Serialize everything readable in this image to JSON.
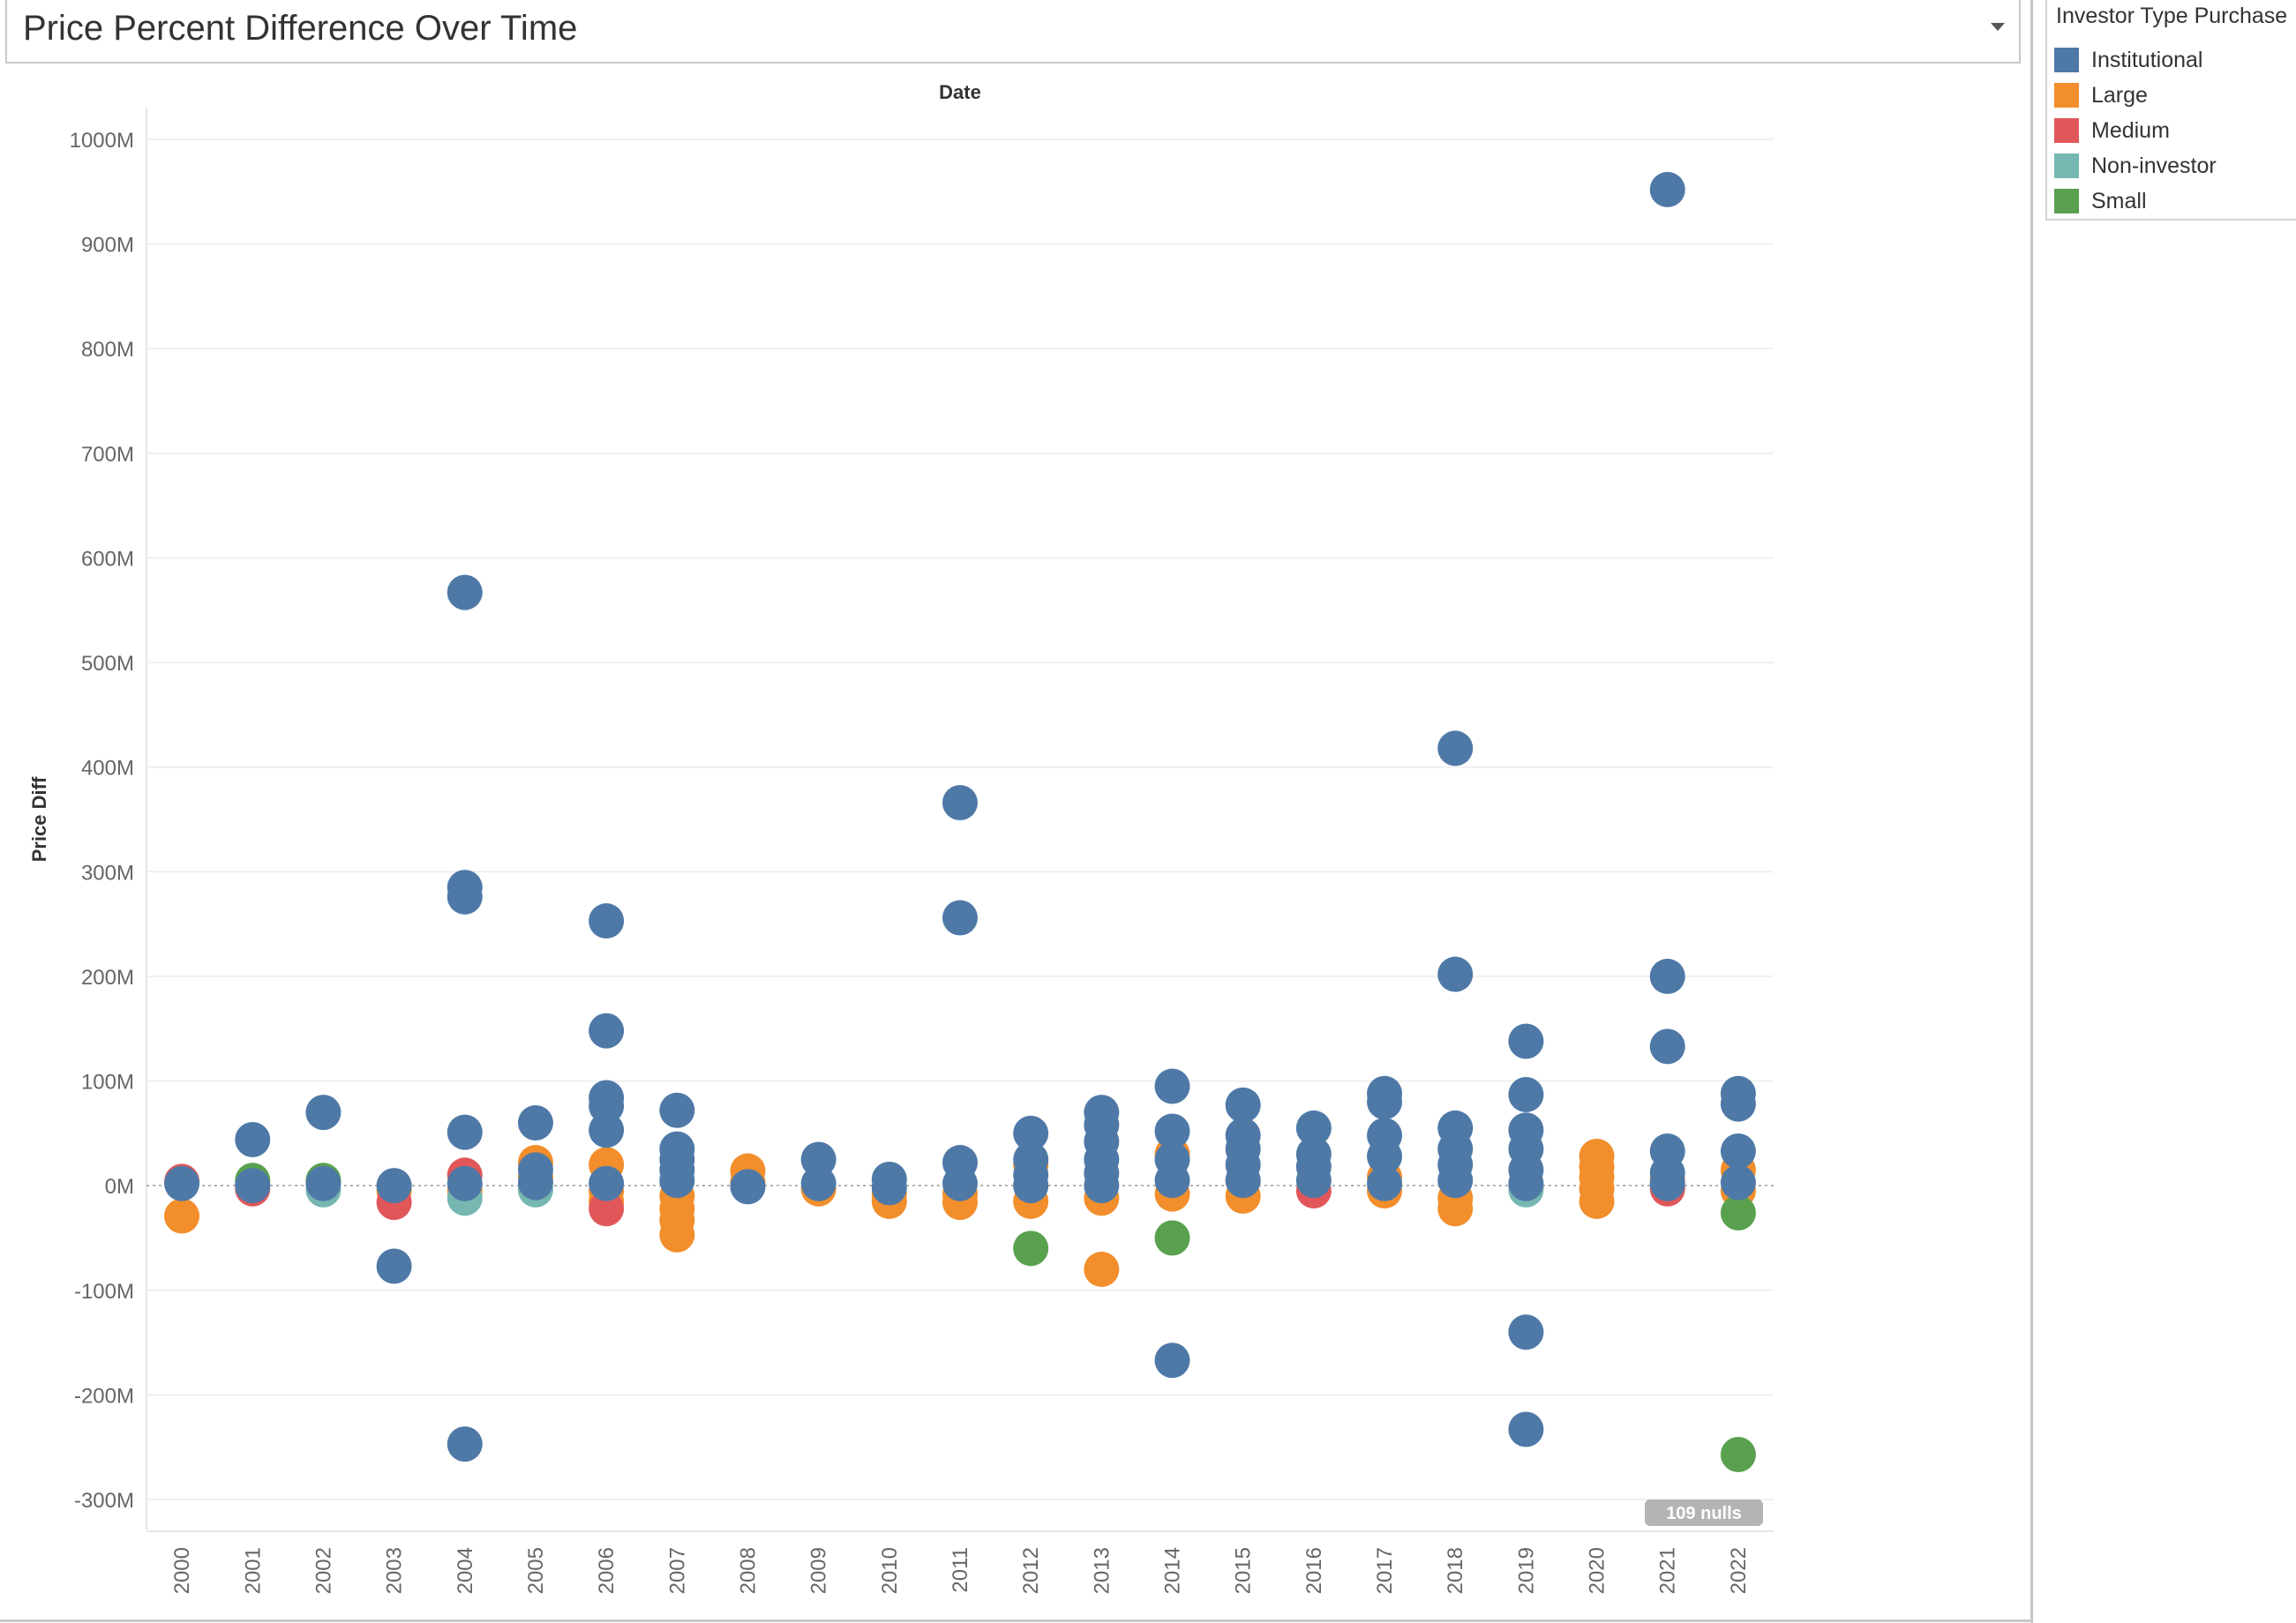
{
  "header": {
    "title": "Price Percent Difference Over Time"
  },
  "legend": {
    "title": "Investor Type Purchase",
    "items": [
      {
        "label": "Institutional",
        "color": "#4e79a7"
      },
      {
        "label": "Large",
        "color": "#f28e2b"
      },
      {
        "label": "Medium",
        "color": "#e15759"
      },
      {
        "label": "Non-investor",
        "color": "#76b7b2"
      },
      {
        "label": "Small",
        "color": "#59a14f"
      }
    ]
  },
  "chart_data": {
    "type": "scatter",
    "title": "Price Percent Difference Over Time",
    "xlabel": "Date",
    "ylabel": "Price Diff",
    "categories": [
      "2000",
      "2001",
      "2002",
      "2003",
      "2004",
      "2005",
      "2006",
      "2007",
      "2008",
      "2009",
      "2010",
      "2011",
      "2012",
      "2013",
      "2014",
      "2015",
      "2016",
      "2017",
      "2018",
      "2019",
      "2020",
      "2021",
      "2022"
    ],
    "y_ticks": [
      "1000M",
      "900M",
      "800M",
      "700M",
      "600M",
      "500M",
      "400M",
      "300M",
      "200M",
      "100M",
      "0M",
      "-100M",
      "-200M",
      "-300M"
    ],
    "ylim": [
      -300,
      1000
    ],
    "y_unit": "M",
    "grid": true,
    "legend_position": "right",
    "nulls_label": "109 nulls",
    "series": [
      {
        "name": "Large",
        "color": "#f28e2b",
        "points": [
          [
            "2000",
            -29
          ],
          [
            "2001",
            2
          ],
          [
            "2003",
            -5
          ],
          [
            "2004",
            -5
          ],
          [
            "2005",
            22
          ],
          [
            "2005",
            8
          ],
          [
            "2006",
            20
          ],
          [
            "2006",
            -15
          ],
          [
            "2006",
            -5
          ],
          [
            "2007",
            -10
          ],
          [
            "2007",
            -22
          ],
          [
            "2007",
            -33
          ],
          [
            "2007",
            -47
          ],
          [
            "2008",
            14
          ],
          [
            "2008",
            3
          ],
          [
            "2009",
            -3
          ],
          [
            "2010",
            -15
          ],
          [
            "2010",
            -8
          ],
          [
            "2011",
            -16
          ],
          [
            "2011",
            -8
          ],
          [
            "2012",
            -15
          ],
          [
            "2012",
            20
          ],
          [
            "2013",
            -12
          ],
          [
            "2013",
            -80
          ],
          [
            "2014",
            -8
          ],
          [
            "2014",
            30
          ],
          [
            "2015",
            -10
          ],
          [
            "2015",
            5
          ],
          [
            "2017",
            -5
          ],
          [
            "2017",
            8
          ],
          [
            "2018",
            -22
          ],
          [
            "2018",
            -12
          ],
          [
            "2019",
            -2
          ],
          [
            "2020",
            28
          ],
          [
            "2020",
            18
          ],
          [
            "2020",
            8
          ],
          [
            "2020",
            -3
          ],
          [
            "2020",
            -15
          ],
          [
            "2021",
            5
          ],
          [
            "2022",
            15
          ],
          [
            "2022",
            -5
          ]
        ]
      },
      {
        "name": "Medium",
        "color": "#e15759",
        "points": [
          [
            "2000",
            4
          ],
          [
            "2001",
            -3
          ],
          [
            "2003",
            -16
          ],
          [
            "2004",
            10
          ],
          [
            "2006",
            -22
          ],
          [
            "2021",
            -3
          ],
          [
            "2016",
            -5
          ]
        ]
      },
      {
        "name": "Non-investor",
        "color": "#76b7b2",
        "points": [
          [
            "2002",
            -4
          ],
          [
            "2004",
            -12
          ],
          [
            "2005",
            -4
          ],
          [
            "2019",
            -4
          ]
        ]
      },
      {
        "name": "Small",
        "color": "#59a14f",
        "points": [
          [
            "2001",
            5
          ],
          [
            "2002",
            5
          ],
          [
            "2012",
            -60
          ],
          [
            "2014",
            -50
          ],
          [
            "2022",
            -26
          ],
          [
            "2022",
            -257
          ]
        ]
      },
      {
        "name": "Institutional",
        "color": "#4e79a7",
        "points": [
          [
            "2000",
            2
          ],
          [
            "2001",
            44
          ],
          [
            "2001",
            0
          ],
          [
            "2002",
            70
          ],
          [
            "2002",
            2
          ],
          [
            "2003",
            0
          ],
          [
            "2003",
            -77
          ],
          [
            "2004",
            567
          ],
          [
            "2004",
            285
          ],
          [
            "2004",
            276
          ],
          [
            "2004",
            51
          ],
          [
            "2004",
            2
          ],
          [
            "2004",
            -247
          ],
          [
            "2005",
            60
          ],
          [
            "2005",
            15
          ],
          [
            "2005",
            3
          ],
          [
            "2006",
            253
          ],
          [
            "2006",
            148
          ],
          [
            "2006",
            84
          ],
          [
            "2006",
            76
          ],
          [
            "2006",
            53
          ],
          [
            "2006",
            2
          ],
          [
            "2007",
            72
          ],
          [
            "2007",
            35
          ],
          [
            "2007",
            25
          ],
          [
            "2007",
            15
          ],
          [
            "2007",
            5
          ],
          [
            "2008",
            -1
          ],
          [
            "2009",
            25
          ],
          [
            "2009",
            2
          ],
          [
            "2010",
            6
          ],
          [
            "2010",
            -2
          ],
          [
            "2011",
            366
          ],
          [
            "2011",
            256
          ],
          [
            "2011",
            22
          ],
          [
            "2011",
            2
          ],
          [
            "2012",
            50
          ],
          [
            "2012",
            25
          ],
          [
            "2012",
            10
          ],
          [
            "2012",
            0
          ],
          [
            "2013",
            70
          ],
          [
            "2013",
            58
          ],
          [
            "2013",
            42
          ],
          [
            "2013",
            25
          ],
          [
            "2013",
            12
          ],
          [
            "2013",
            0
          ],
          [
            "2014",
            95
          ],
          [
            "2014",
            52
          ],
          [
            "2014",
            25
          ],
          [
            "2014",
            5
          ],
          [
            "2014",
            -167
          ],
          [
            "2015",
            77
          ],
          [
            "2015",
            48
          ],
          [
            "2015",
            35
          ],
          [
            "2015",
            20
          ],
          [
            "2015",
            5
          ],
          [
            "2016",
            55
          ],
          [
            "2016",
            30
          ],
          [
            "2016",
            18
          ],
          [
            "2016",
            5
          ],
          [
            "2017",
            88
          ],
          [
            "2017",
            80
          ],
          [
            "2017",
            48
          ],
          [
            "2017",
            28
          ],
          [
            "2017",
            2
          ],
          [
            "2018",
            418
          ],
          [
            "2018",
            202
          ],
          [
            "2018",
            55
          ],
          [
            "2018",
            35
          ],
          [
            "2018",
            20
          ],
          [
            "2018",
            5
          ],
          [
            "2019",
            138
          ],
          [
            "2019",
            87
          ],
          [
            "2019",
            53
          ],
          [
            "2019",
            35
          ],
          [
            "2019",
            15
          ],
          [
            "2019",
            2
          ],
          [
            "2019",
            -140
          ],
          [
            "2019",
            -233
          ],
          [
            "2021",
            952
          ],
          [
            "2021",
            200
          ],
          [
            "2021",
            133
          ],
          [
            "2021",
            33
          ],
          [
            "2021",
            12
          ],
          [
            "2021",
            2
          ],
          [
            "2022",
            88
          ],
          [
            "2022",
            78
          ],
          [
            "2022",
            33
          ],
          [
            "2022",
            3
          ]
        ]
      }
    ]
  }
}
